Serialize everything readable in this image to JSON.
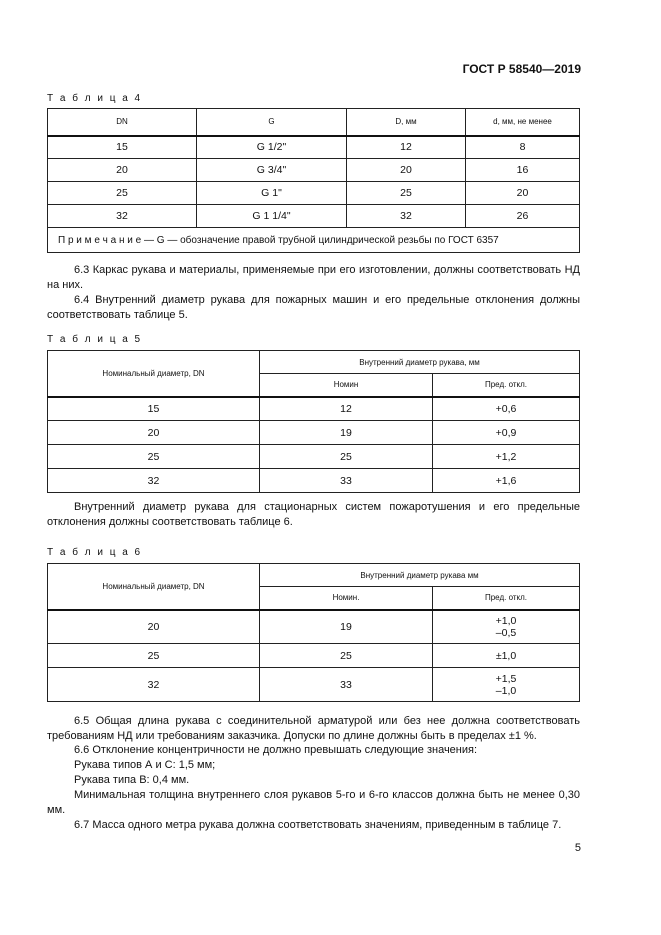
{
  "header": "ГОСТ Р 58540—2019",
  "t4": {
    "caption": "Т а б л и ц а 4",
    "cols": [
      "DN",
      "G",
      "D, мм",
      "d, мм, не менее"
    ],
    "rows": [
      [
        "15",
        "G 1/2\"",
        "12",
        "8"
      ],
      [
        "20",
        "G 3/4\"",
        "20",
        "16"
      ],
      [
        "25",
        "G 1\"",
        "25",
        "20"
      ],
      [
        "32",
        "G 1 1/4\"",
        "32",
        "26"
      ]
    ],
    "note": "П р и м е ч а н и е — G — обозначение правой трубной цилиндрической резьбы по ГОСТ 6357"
  },
  "p63": "6.3 Каркас рукава и материалы, применяемые при его изготовлении, должны соответствовать НД на них.",
  "p64": "6.4 Внутренний диаметр рукава для пожарных машин и его предельные отклонения должны соответствовать таблице 5.",
  "t5": {
    "caption": "Т а б л и ц а 5",
    "h1": "Номинальный диаметр, DN",
    "h2": "Внутренний диаметр рукава, мм",
    "h3": "Номин",
    "h4": "Пред. откл.",
    "rows": [
      [
        "15",
        "12",
        "+0,6"
      ],
      [
        "20",
        "19",
        "+0,9"
      ],
      [
        "25",
        "25",
        "+1,2"
      ],
      [
        "32",
        "33",
        "+1,6"
      ]
    ]
  },
  "p_stat": "Внутренний диаметр рукава для стационарных систем пожаротушения и его предельные отклонения должны соответствовать таблице 6.",
  "t6": {
    "caption": "Т а б л и ц а 6",
    "h1": "Номинальный диаметр, DN",
    "h2": "Внутренний диаметр рукава мм",
    "h3": "Номин.",
    "h4": "Пред. откл.",
    "rows": [
      [
        "20",
        "19",
        "+1,0",
        "–0,5"
      ],
      [
        "25",
        "25",
        "±1,0",
        ""
      ],
      [
        "32",
        "33",
        "+1,5",
        "–1,0"
      ]
    ]
  },
  "p65": "6.5 Общая длина рукава с соединительной арматурой или без нее должна соответствовать требованиям НД или требованиям заказчика. Допуски по длине должны быть в пределах ±1 %.",
  "p66": "6.6 Отклонение концентричности не должно превышать следующие значения:",
  "p66a": "Рукава типов А и С: 1,5 мм;",
  "p66b": "Рукава типа В: 0,4 мм.",
  "p66c": "Минимальная толщина внутреннего слоя рукавов 5-го и 6-го классов должна быть не менее 0,30 мм.",
  "p67": "6.7 Масса одного метра рукава должна соответствовать значениям, приведенным в таблице 7.",
  "page_number": "5"
}
